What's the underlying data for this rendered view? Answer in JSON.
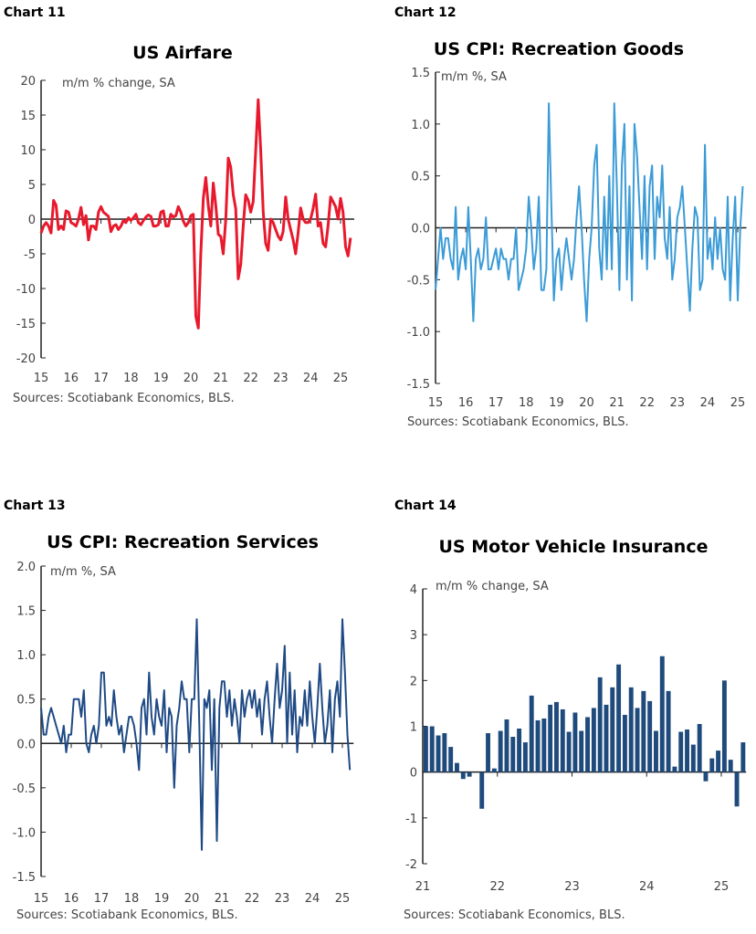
{
  "chart_data": [
    {
      "label": "Chart 11",
      "title": "US Airfare",
      "type": "line",
      "ylabel": "m/m % change, SA",
      "source": "Sources: Scotiabank Economics, BLS.",
      "color": "#e8192c",
      "ylim": [
        -20,
        20
      ],
      "yticks": [
        20,
        15,
        10,
        5,
        0,
        -5,
        -10,
        -15,
        -20
      ],
      "xticks": [
        "15",
        "16",
        "17",
        "18",
        "19",
        "20",
        "21",
        "22",
        "23",
        "24",
        "25"
      ],
      "x_start": "2015-01",
      "frequency": "monthly",
      "values": [
        -2,
        -1,
        -0.5,
        -1,
        -2,
        2.7,
        2,
        -1.5,
        -1,
        -1.5,
        1.2,
        1,
        -0.5,
        -0.7,
        -1,
        0,
        1.7,
        -0.8,
        0.5,
        -3,
        -1,
        -1,
        -1.5,
        1,
        1.8,
        1,
        0.7,
        0.4,
        -1.8,
        -1,
        -0.8,
        -1.5,
        -1,
        -0.2,
        -0.5,
        0.2,
        -0.2,
        0.2,
        0.7,
        -0.5,
        -0.8,
        -0.2,
        0.3,
        0.6,
        0.4,
        -1,
        -1,
        -0.8,
        1,
        1.2,
        -1,
        -1,
        0.7,
        0.3,
        0.5,
        1.8,
        1,
        -0.3,
        -1,
        -0.5,
        0.5,
        0.7,
        -14,
        -15.7,
        -5,
        3,
        6,
        2,
        -1,
        5.2,
        2,
        -2.2,
        -2.5,
        -5,
        0,
        8.8,
        7.5,
        3.5,
        1.5,
        -8.6,
        -6.5,
        -1,
        3.5,
        2.7,
        1,
        2.5,
        10,
        17.2,
        10,
        1,
        -3.5,
        -4.5,
        0,
        -0.5,
        -1.5,
        -2.5,
        -3,
        -1.8,
        3.2,
        0,
        -1.5,
        -3,
        -5,
        -2,
        1.6,
        0,
        -0.5,
        -0.5,
        0,
        1.5,
        3.6,
        -1,
        -0.5,
        -3.5,
        -4,
        -1,
        3.2,
        2.5,
        1.8,
        0,
        3,
        1,
        -4,
        -5.3,
        -2.7
      ]
    },
    {
      "label": "Chart 12",
      "title": "US CPI: Recreation Goods",
      "type": "line",
      "ylabel": "m/m %, SA",
      "source": "Sources: Scotiabank Economics, BLS.",
      "color": "#3b9bd6",
      "ylim": [
        -1.5,
        1.5
      ],
      "yticks": [
        "1.5",
        "1.0",
        "0.5",
        "0.0",
        "-0.5",
        "-1.0",
        "-1.5"
      ],
      "xticks": [
        "15",
        "16",
        "17",
        "18",
        "19",
        "20",
        "21",
        "22",
        "23",
        "24",
        "25"
      ],
      "x_start": "2015-01",
      "frequency": "monthly",
      "values": [
        -0.6,
        -0.3,
        0,
        -0.3,
        -0.1,
        -0.1,
        -0.3,
        -0.4,
        0.2,
        -0.5,
        -0.3,
        -0.2,
        -0.4,
        0.2,
        -0.3,
        -0.9,
        -0.3,
        -0.2,
        -0.4,
        -0.3,
        0.1,
        -0.4,
        -0.4,
        -0.3,
        -0.2,
        -0.4,
        -0.2,
        -0.3,
        -0.3,
        -0.5,
        -0.3,
        -0.3,
        0,
        -0.6,
        -0.5,
        -0.4,
        -0.2,
        0.3,
        0,
        -0.4,
        -0.2,
        0.3,
        -0.6,
        -0.6,
        -0.4,
        1.2,
        0.2,
        -0.7,
        -0.3,
        -0.2,
        -0.6,
        -0.3,
        -0.1,
        -0.3,
        -0.5,
        -0.3,
        0.1,
        0.4,
        0,
        -0.5,
        -0.9,
        -0.3,
        0,
        0.6,
        0.8,
        -0.2,
        -0.5,
        0.3,
        -0.4,
        0.5,
        -0.4,
        1.2,
        0.4,
        -0.6,
        0.6,
        1.0,
        -0.5,
        0.4,
        -0.7,
        1.0,
        0.7,
        0.2,
        -0.3,
        0.5,
        -0.4,
        0.4,
        0.6,
        -0.3,
        0.3,
        0.1,
        0.6,
        -0.1,
        -0.3,
        0.2,
        -0.5,
        -0.3,
        0.1,
        0.2,
        0.4,
        0,
        -0.4,
        -0.8,
        -0.2,
        0.2,
        0.1,
        -0.6,
        -0.5,
        0.8,
        -0.3,
        -0.1,
        -0.4,
        0.1,
        -0.3,
        0,
        -0.4,
        -0.5,
        0.3,
        -0.7,
        -0.1,
        0.3,
        -0.7,
        0,
        0.4
      ]
    },
    {
      "label": "Chart 13",
      "title": "US CPI: Recreation Services",
      "type": "line",
      "ylabel": "m/m %, SA",
      "source": "Sources: Scotiabank Economics, BLS.",
      "color": "#1f4a85",
      "ylim": [
        -1.5,
        2.0
      ],
      "yticks": [
        "2.0",
        "1.5",
        "1.0",
        "0.5",
        "0.0",
        "-0.5",
        "-1.0",
        "-1.5"
      ],
      "xticks": [
        "15",
        "16",
        "17",
        "18",
        "19",
        "20",
        "21",
        "22",
        "23",
        "24",
        "25"
      ],
      "x_start": "2015-01",
      "frequency": "monthly",
      "values": [
        0.4,
        0.1,
        0.1,
        0.3,
        0.4,
        0.3,
        0.2,
        0.1,
        0,
        0.2,
        -0.1,
        0.1,
        0.1,
        0.5,
        0.5,
        0.5,
        0.3,
        0.6,
        0,
        -0.1,
        0.1,
        0.2,
        0,
        0.2,
        0.8,
        0.8,
        0.2,
        0.3,
        0.2,
        0.6,
        0.3,
        0.1,
        0.2,
        -0.1,
        0.1,
        0.3,
        0.3,
        0.2,
        0,
        -0.3,
        0.4,
        0.5,
        0.1,
        0.8,
        0.3,
        0.1,
        0.5,
        0.3,
        0.2,
        0.6,
        -0.1,
        0.4,
        0.3,
        -0.5,
        0.2,
        0.4,
        0.7,
        0.5,
        0.5,
        -0.1,
        0.5,
        0.5,
        1.4,
        0.2,
        -1.2,
        0.5,
        0.4,
        0.6,
        -0.3,
        0.5,
        -1.1,
        0.4,
        0.7,
        0.7,
        0.3,
        0.6,
        0.2,
        0.5,
        0.3,
        0,
        0.6,
        0.3,
        0.5,
        0.6,
        0.4,
        0.6,
        0.3,
        0.5,
        0.1,
        0.5,
        0.7,
        0.3,
        0,
        0.5,
        0.9,
        0.4,
        0.6,
        1.1,
        0,
        0.8,
        0.1,
        0.6,
        -0.1,
        0.3,
        0.2,
        0.6,
        0.2,
        0.7,
        0.3,
        0,
        0.4,
        0.9,
        0.4,
        0,
        0.2,
        0.6,
        -0.1,
        0.5,
        0.7,
        0.3,
        1.4,
        0.8,
        0.1,
        -0.3
      ]
    },
    {
      "label": "Chart 14",
      "title": "US Motor Vehicle Insurance",
      "type": "bar",
      "ylabel": "m/m % change, SA",
      "source": "Sources: Scotiabank Economics, BLS.",
      "color": "#1f4a7c",
      "ylim": [
        -2,
        4
      ],
      "yticks": [
        "4",
        "3",
        "2",
        "1",
        "0",
        "-1",
        "-2"
      ],
      "xticks": [
        "21",
        "22",
        "23",
        "24",
        "25"
      ],
      "x_start": "2021-01",
      "frequency": "monthly",
      "values": [
        1.0,
        1.0,
        0.8,
        0.85,
        0.55,
        0.2,
        -0.15,
        -0.1,
        0.0,
        -0.8,
        0.85,
        0.08,
        0.9,
        1.15,
        0.77,
        0.95,
        0.65,
        1.67,
        1.13,
        1.17,
        1.47,
        1.53,
        1.37,
        0.88,
        1.3,
        0.9,
        1.2,
        1.4,
        2.07,
        1.47,
        1.85,
        2.35,
        1.25,
        1.85,
        1.4,
        1.77,
        1.55,
        0.9,
        2.53,
        1.77,
        0.12,
        0.88,
        0.93,
        0.6,
        1.05,
        -0.2,
        0.3,
        0.47,
        2.0,
        0.27,
        -0.75,
        0.65
      ]
    }
  ]
}
